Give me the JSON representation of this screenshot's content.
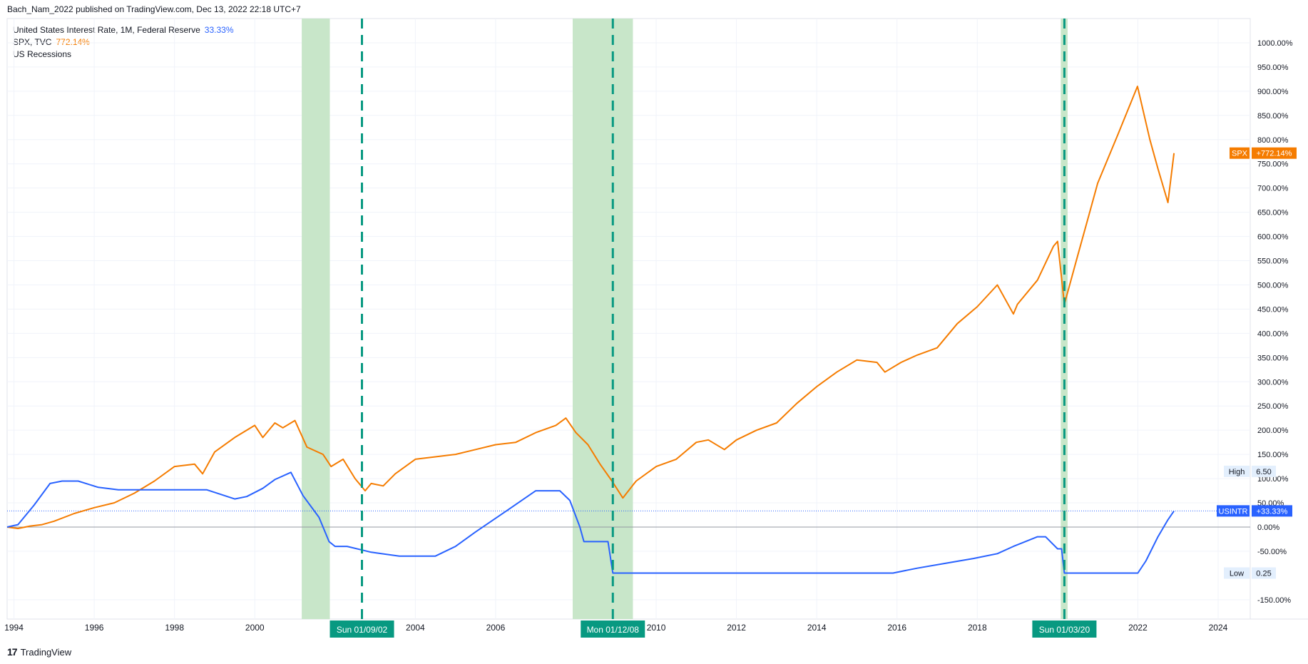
{
  "header": {
    "publish_line": "Bach_Nam_2022 published on TradingView.com, Dec 13, 2022 22:18 UTC+7"
  },
  "legend": {
    "rate_label": "United States Interest Rate, 1M, Federal Reserve",
    "rate_value": "33.33%",
    "spx_label": "SPX, TVC",
    "spx_value": "772.14%",
    "recessions_label": "US Recessions"
  },
  "footer": {
    "logo": "17",
    "brand": "TradingView"
  },
  "colors": {
    "spx": "#f57c00",
    "rate": "#2962ff",
    "recession": "#c8e6c9",
    "marker": "#089981",
    "grid": "#f0f3fa"
  },
  "chart_data": {
    "type": "line",
    "x_ticks": [
      "1994",
      "1996",
      "1998",
      "2000",
      "2004",
      "2006",
      "2010",
      "2012",
      "2014",
      "2016",
      "2018",
      "2022",
      "2024"
    ],
    "y_ticks": [
      "1000.00%",
      "950.00%",
      "900.00%",
      "850.00%",
      "800.00%",
      "750.00%",
      "700.00%",
      "650.00%",
      "600.00%",
      "550.00%",
      "500.00%",
      "450.00%",
      "400.00%",
      "350.00%",
      "300.00%",
      "250.00%",
      "200.00%",
      "150.00%",
      "100.00%",
      "50.00%",
      "0.00%",
      "-50.00%",
      "-150.00%"
    ],
    "ylim": [
      -190,
      1050
    ],
    "xlim": [
      1993.83,
      2024.8
    ],
    "recessions": [
      {
        "start": 2001.17,
        "end": 2001.87
      },
      {
        "start": 2007.92,
        "end": 2009.42
      },
      {
        "start": 2020.08,
        "end": 2020.25
      }
    ],
    "markers": [
      {
        "x": 2002.67,
        "label": "Sun 01/09/02"
      },
      {
        "x": 2008.92,
        "label": "Mon 01/12/08"
      },
      {
        "x": 2020.17,
        "label": "Sun 01/03/20"
      }
    ],
    "badges": {
      "spx": {
        "name": "SPX",
        "value": "+772.14%",
        "y": 772.14
      },
      "rate": {
        "name": "USINTR",
        "value": "+33.33%",
        "y": 33.33
      },
      "high": {
        "name": "High",
        "value": "6.50",
        "y": 115
      },
      "low": {
        "name": "Low",
        "value": "0.25",
        "y": -95
      }
    },
    "series": [
      {
        "name": "SPX",
        "x": [
          1993.83,
          1994.1,
          1994.4,
          1994.7,
          1995.0,
          1995.5,
          1996.0,
          1996.5,
          1997.0,
          1997.5,
          1998.0,
          1998.5,
          1998.7,
          1999.0,
          1999.5,
          2000.0,
          2000.2,
          2000.5,
          2000.7,
          2001.0,
          2001.3,
          2001.7,
          2001.9,
          2002.2,
          2002.5,
          2002.75,
          2002.9,
          2003.2,
          2003.5,
          2004.0,
          2004.5,
          2005.0,
          2005.5,
          2006.0,
          2006.5,
          2007.0,
          2007.5,
          2007.75,
          2008.0,
          2008.3,
          2008.6,
          2008.9,
          2009.17,
          2009.5,
          2010.0,
          2010.5,
          2011.0,
          2011.3,
          2011.7,
          2012.0,
          2012.5,
          2013.0,
          2013.5,
          2014.0,
          2014.5,
          2015.0,
          2015.5,
          2015.7,
          2016.1,
          2016.5,
          2017.0,
          2017.5,
          2018.0,
          2018.5,
          2018.9,
          2019.0,
          2019.5,
          2019.9,
          2020.0,
          2020.17,
          2020.5,
          2020.8,
          2021.0,
          2021.5,
          2021.99,
          2022.3,
          2022.5,
          2022.75,
          2022.9
        ],
        "values": [
          0,
          -3,
          2,
          5,
          12,
          28,
          40,
          50,
          70,
          95,
          125,
          130,
          110,
          155,
          185,
          210,
          185,
          215,
          205,
          220,
          165,
          150,
          125,
          140,
          100,
          75,
          90,
          85,
          110,
          140,
          145,
          150,
          160,
          170,
          175,
          195,
          210,
          225,
          195,
          170,
          130,
          95,
          60,
          95,
          125,
          140,
          175,
          180,
          160,
          180,
          200,
          215,
          255,
          290,
          320,
          345,
          340,
          320,
          340,
          355,
          370,
          420,
          455,
          500,
          440,
          460,
          510,
          580,
          590,
          460,
          560,
          650,
          710,
          810,
          910,
          800,
          740,
          670,
          772
        ]
      },
      {
        "name": "USINTR",
        "x": [
          1993.83,
          1994.1,
          1994.5,
          1994.9,
          1995.2,
          1995.6,
          1996.1,
          1996.6,
          1997.2,
          1998.2,
          1998.8,
          1999.5,
          1999.8,
          2000.2,
          2000.5,
          2000.9,
          2001.2,
          2001.6,
          2001.85,
          2002.0,
          2002.3,
          2002.9,
          2003.6,
          2004.5,
          2005.0,
          2005.5,
          2006.3,
          2007.0,
          2007.6,
          2007.85,
          2008.1,
          2008.2,
          2008.8,
          2008.92,
          2009.0,
          2015.9,
          2016.5,
          2017.2,
          2017.9,
          2018.5,
          2018.9,
          2019.5,
          2019.7,
          2020.0,
          2020.1,
          2020.17,
          2020.3,
          2022.0,
          2022.2,
          2022.5,
          2022.75,
          2022.9
        ],
        "values": [
          0,
          5,
          45,
          90,
          95,
          95,
          82,
          77,
          77,
          77,
          77,
          58,
          63,
          80,
          98,
          113,
          65,
          20,
          -30,
          -40,
          -40,
          -52,
          -60,
          -60,
          -40,
          -10,
          35,
          75,
          75,
          55,
          0,
          -30,
          -30,
          -95,
          -95,
          -95,
          -85,
          -75,
          -65,
          -55,
          -40,
          -20,
          -20,
          -45,
          -45,
          -95,
          -95,
          -95,
          -70,
          -20,
          15,
          33.33
        ]
      }
    ]
  }
}
